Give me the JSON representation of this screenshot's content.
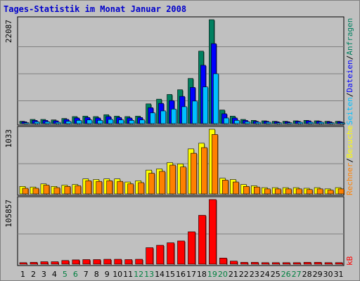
{
  "title": "Tages-Statistik im Monat Januar 2008",
  "colors": {
    "background": "#c0c0c0",
    "anfragen": "#008060",
    "dateien": "#0000ff",
    "seiten": "#00c0ff",
    "besuche": "#ffff00",
    "rechner": "#ff8000",
    "kb": "#ff0000",
    "weekday_label": "#000000",
    "weekend_label": "#008040"
  },
  "chart_data": [
    {
      "type": "bar",
      "panel": "top",
      "max_label": "22087",
      "ylim": [
        0,
        22087
      ],
      "categories": [
        "1",
        "2",
        "3",
        "4",
        "5",
        "6",
        "7",
        "8",
        "9",
        "10",
        "11",
        "12",
        "13",
        "14",
        "15",
        "16",
        "17",
        "18",
        "19",
        "20",
        "21",
        "22",
        "23",
        "24",
        "25",
        "26",
        "27",
        "28",
        "29",
        "30",
        "31"
      ],
      "weekend_days": [
        "5",
        "6",
        "12",
        "13",
        "19",
        "20",
        "26",
        "27"
      ],
      "legend_labels": [
        "Anfragen",
        "Dateien",
        "Seiten"
      ],
      "legend_separator": "/",
      "series": [
        {
          "name": "Anfragen",
          "color": "#008060",
          "values": [
            500,
            900,
            900,
            800,
            1100,
            1500,
            1600,
            1500,
            1900,
            1600,
            1500,
            1600,
            4200,
            5200,
            6200,
            7200,
            9600,
            15400,
            22087,
            2900,
            1600,
            900,
            700,
            600,
            500,
            500,
            600,
            700,
            600,
            500,
            500
          ]
        },
        {
          "name": "Dateien",
          "color": "#0000ff",
          "values": [
            400,
            700,
            700,
            600,
            900,
            1200,
            1300,
            1200,
            1500,
            1300,
            1200,
            1300,
            3400,
            4300,
            4900,
            5800,
            7700,
            12400,
            17000,
            2100,
            1200,
            700,
            500,
            500,
            400,
            400,
            500,
            600,
            500,
            400,
            400
          ]
        },
        {
          "name": "Seiten",
          "color": "#00c0ff",
          "values": [
            200,
            400,
            400,
            300,
            500,
            700,
            800,
            700,
            900,
            800,
            700,
            800,
            2300,
            2700,
            3100,
            3600,
            4800,
            7800,
            10600,
            1200,
            700,
            400,
            300,
            300,
            200,
            200,
            300,
            300,
            300,
            200,
            200
          ]
        }
      ]
    },
    {
      "type": "bar",
      "panel": "middle",
      "max_label": "1033",
      "ylim": [
        0,
        1033
      ],
      "categories": [
        "1",
        "2",
        "3",
        "4",
        "5",
        "6",
        "7",
        "8",
        "9",
        "10",
        "11",
        "12",
        "13",
        "14",
        "15",
        "16",
        "17",
        "18",
        "19",
        "20",
        "21",
        "22",
        "23",
        "24",
        "25",
        "26",
        "27",
        "28",
        "29",
        "30",
        "31"
      ],
      "legend_labels": [
        "Rechner",
        "Besuche"
      ],
      "legend_separator": "/",
      "series": [
        {
          "name": "Besuche",
          "color": "#ffff00",
          "values": [
            120,
            110,
            160,
            120,
            140,
            150,
            240,
            230,
            240,
            240,
            190,
            210,
            380,
            400,
            500,
            480,
            720,
            810,
            1033,
            250,
            230,
            150,
            130,
            100,
            100,
            100,
            100,
            90,
            100,
            80,
            100
          ]
        },
        {
          "name": "Rechner",
          "color": "#ff8000",
          "values": [
            90,
            90,
            140,
            100,
            120,
            130,
            210,
            200,
            210,
            200,
            160,
            180,
            330,
            360,
            460,
            430,
            650,
            740,
            950,
            220,
            190,
            120,
            110,
            80,
            80,
            80,
            80,
            70,
            80,
            60,
            80
          ]
        }
      ]
    },
    {
      "type": "bar",
      "panel": "bottom",
      "max_label": "105857",
      "ylim": [
        0,
        105857
      ],
      "categories": [
        "1",
        "2",
        "3",
        "4",
        "5",
        "6",
        "7",
        "8",
        "9",
        "10",
        "11",
        "12",
        "13",
        "14",
        "15",
        "16",
        "17",
        "18",
        "19",
        "20",
        "21",
        "22",
        "23",
        "24",
        "25",
        "26",
        "27",
        "28",
        "29",
        "30",
        "31"
      ],
      "legend_labels": [
        "kB"
      ],
      "series": [
        {
          "name": "kB",
          "color": "#ff0000",
          "values": [
            2500,
            3000,
            4000,
            4000,
            6000,
            7000,
            7500,
            7500,
            8000,
            8000,
            7500,
            8000,
            27000,
            31000,
            35000,
            38000,
            53000,
            80000,
            105857,
            10000,
            5000,
            3000,
            3000,
            2500,
            2500,
            2500,
            2500,
            3000,
            3000,
            2500,
            2500
          ]
        }
      ]
    }
  ]
}
